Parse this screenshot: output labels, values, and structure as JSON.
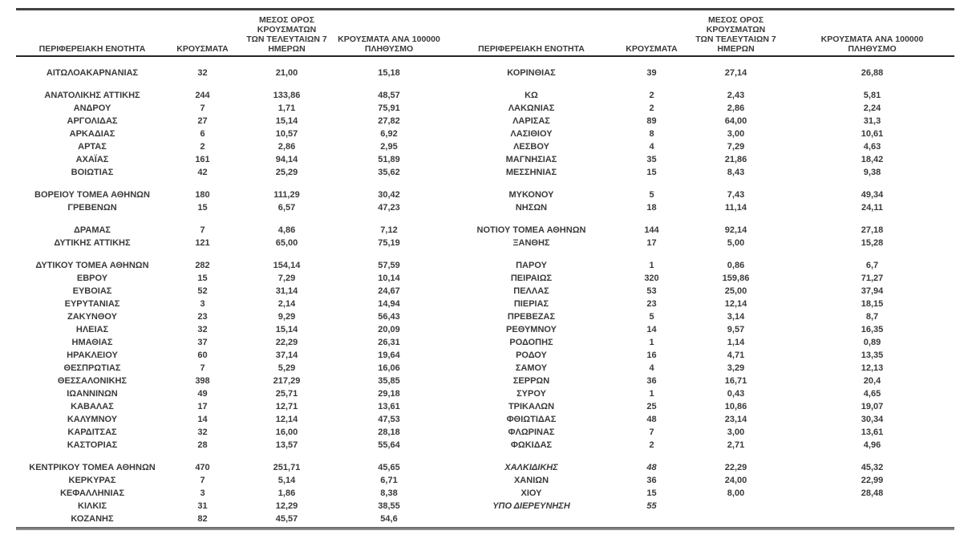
{
  "table": {
    "headers": {
      "region": "ΠΕΡΙΦΕΡΕΙΑΚΗ ΕΝΟΤΗΤΑ",
      "cases": "ΚΡΟΥΣΜΑΤΑ",
      "avg7": "ΜΕΣΟΣ ΟΡΟΣ ΚΡΟΥΣΜΑΤΩΝ\nΤΩΝ ΤΕΛΕΥΤΑΙΩΝ 7\nΗΜΕΡΩΝ",
      "per100k": "ΚΡΟΥΣΜΑΤΑ ΑΝΑ 100000\nΠΛΗΘΥΣΜΟ"
    },
    "rows": [
      {
        "l": [
          "ΑΙΤΩΛΟΑΚΑΡΝΑΝΙΑΣ",
          "32",
          "21,00",
          "15,18"
        ],
        "r": [
          "ΚΟΡΙΝΘΙΑΣ",
          "39",
          "27,14",
          "26,88"
        ]
      },
      {
        "spacer": true
      },
      {
        "l": [
          "ΑΝΑΤΟΛΙΚΗΣ ΑΤΤΙΚΗΣ",
          "244",
          "133,86",
          "48,57"
        ],
        "r": [
          "ΚΩ",
          "2",
          "2,43",
          "5,81"
        ]
      },
      {
        "l": [
          "ΑΝΔΡΟΥ",
          "7",
          "1,71",
          "75,91"
        ],
        "r": [
          "ΛΑΚΩΝΙΑΣ",
          "2",
          "2,86",
          "2,24"
        ]
      },
      {
        "l": [
          "ΑΡΓΟΛΙΔΑΣ",
          "27",
          "15,14",
          "27,82"
        ],
        "r": [
          "ΛΑΡΙΣΑΣ",
          "89",
          "64,00",
          "31,3"
        ]
      },
      {
        "l": [
          "ΑΡΚΑΔΙΑΣ",
          "6",
          "10,57",
          "6,92"
        ],
        "r": [
          "ΛΑΣΙΘΙΟΥ",
          "8",
          "3,00",
          "10,61"
        ]
      },
      {
        "l": [
          "ΑΡΤΑΣ",
          "2",
          "2,86",
          "2,95"
        ],
        "r": [
          "ΛΕΣΒΟΥ",
          "4",
          "7,29",
          "4,63"
        ]
      },
      {
        "l": [
          "ΑΧΑΪΑΣ",
          "161",
          "94,14",
          "51,89"
        ],
        "r": [
          "ΜΑΓΝΗΣΙΑΣ",
          "35",
          "21,86",
          "18,42"
        ]
      },
      {
        "l": [
          "ΒΟΙΩΤΙΑΣ",
          "42",
          "25,29",
          "35,62"
        ],
        "r": [
          "ΜΕΣΣΗΝΙΑΣ",
          "15",
          "8,43",
          "9,38"
        ]
      },
      {
        "spacer": true
      },
      {
        "l": [
          "ΒΟΡΕΙΟΥ ΤΟΜΕΑ ΑΘΗΝΩΝ",
          "180",
          "111,29",
          "30,42"
        ],
        "r": [
          "ΜΥΚΟΝΟΥ",
          "5",
          "7,43",
          "49,34"
        ]
      },
      {
        "l": [
          "ΓΡΕΒΕΝΩΝ",
          "15",
          "6,57",
          "47,23"
        ],
        "r": [
          "ΝΗΣΩΝ",
          "18",
          "11,14",
          "24,11"
        ]
      },
      {
        "spacer": true
      },
      {
        "l": [
          "ΔΡΑΜΑΣ",
          "7",
          "4,86",
          "7,12"
        ],
        "r": [
          "ΝΟΤΙΟΥ ΤΟΜΕΑ ΑΘΗΝΩΝ",
          "144",
          "92,14",
          "27,18"
        ]
      },
      {
        "l": [
          "ΔΥΤΙΚΗΣ ΑΤΤΙΚΗΣ",
          "121",
          "65,00",
          "75,19"
        ],
        "r": [
          "ΞΑΝΘΗΣ",
          "17",
          "5,00",
          "15,28"
        ]
      },
      {
        "spacer": true
      },
      {
        "l": [
          "ΔΥΤΙΚΟΥ ΤΟΜΕΑ ΑΘΗΝΩΝ",
          "282",
          "154,14",
          "57,59"
        ],
        "r": [
          "ΠΑΡΟΥ",
          "1",
          "0,86",
          "6,7"
        ]
      },
      {
        "l": [
          "ΕΒΡΟΥ",
          "15",
          "7,29",
          "10,14"
        ],
        "r": [
          "ΠΕΙΡΑΙΩΣ",
          "320",
          "159,86",
          "71,27"
        ]
      },
      {
        "l": [
          "ΕΥΒΟΙΑΣ",
          "52",
          "31,14",
          "24,67"
        ],
        "r": [
          "ΠΕΛΛΑΣ",
          "53",
          "25,00",
          "37,94"
        ]
      },
      {
        "l": [
          "ΕΥΡΥΤΑΝΙΑΣ",
          "3",
          "2,14",
          "14,94"
        ],
        "r": [
          "ΠΙΕΡΙΑΣ",
          "23",
          "12,14",
          "18,15"
        ]
      },
      {
        "l": [
          "ΖΑΚΥΝΘΟΥ",
          "23",
          "9,29",
          "56,43"
        ],
        "r": [
          "ΠΡΕΒΕΖΑΣ",
          "5",
          "3,14",
          "8,7"
        ]
      },
      {
        "l": [
          "ΗΛΕΙΑΣ",
          "32",
          "15,14",
          "20,09"
        ],
        "r": [
          "ΡΕΘΥΜΝΟΥ",
          "14",
          "9,57",
          "16,35"
        ]
      },
      {
        "l": [
          "ΗΜΑΘΙΑΣ",
          "37",
          "22,29",
          "26,31"
        ],
        "r": [
          "ΡΟΔΟΠΗΣ",
          "1",
          "1,14",
          "0,89"
        ]
      },
      {
        "l": [
          "ΗΡΑΚΛΕΙΟΥ",
          "60",
          "37,14",
          "19,64"
        ],
        "r": [
          "ΡΟΔΟΥ",
          "16",
          "4,71",
          "13,35"
        ]
      },
      {
        "l": [
          "ΘΕΣΠΡΩΤΙΑΣ",
          "7",
          "5,29",
          "16,06"
        ],
        "r": [
          "ΣΑΜΟΥ",
          "4",
          "3,29",
          "12,13"
        ]
      },
      {
        "l": [
          "ΘΕΣΣΑΛΟΝΙΚΗΣ",
          "398",
          "217,29",
          "35,85"
        ],
        "r": [
          "ΣΕΡΡΩΝ",
          "36",
          "16,71",
          "20,4"
        ]
      },
      {
        "l": [
          "ΙΩΑΝΝΙΝΩΝ",
          "49",
          "25,71",
          "29,18"
        ],
        "r": [
          "ΣΥΡΟΥ",
          "1",
          "0,43",
          "4,65"
        ]
      },
      {
        "l": [
          "ΚΑΒΑΛΑΣ",
          "17",
          "12,71",
          "13,61"
        ],
        "r": [
          "ΤΡΙΚΑΛΩΝ",
          "25",
          "10,86",
          "19,07"
        ]
      },
      {
        "l": [
          "ΚΑΛΥΜΝΟΥ",
          "14",
          "12,14",
          "47,53"
        ],
        "r": [
          "ΦΘΙΩΤΙΔΑΣ",
          "48",
          "23,14",
          "30,34"
        ]
      },
      {
        "l": [
          "ΚΑΡΔΙΤΣΑΣ",
          "32",
          "16,00",
          "28,18"
        ],
        "r": [
          "ΦΛΩΡΙΝΑΣ",
          "7",
          "3,00",
          "13,61"
        ]
      },
      {
        "l": [
          "ΚΑΣΤΟΡΙΑΣ",
          "28",
          "13,57",
          "55,64"
        ],
        "r": [
          "ΦΩΚΙΔΑΣ",
          "2",
          "2,71",
          "4,96"
        ]
      },
      {
        "spacer": true
      },
      {
        "l": [
          "ΚΕΝΤΡΙΚΟΥ ΤΟΜΕΑ ΑΘΗΝΩΝ",
          "470",
          "251,71",
          "45,65"
        ],
        "r": [
          "ΧΑΛΚΙΔΙΚΗΣ",
          "48",
          "22,29",
          "45,32"
        ],
        "ri": true
      },
      {
        "l": [
          "ΚΕΡΚΥΡΑΣ",
          "7",
          "5,14",
          "6,71"
        ],
        "r": [
          "ΧΑΝΙΩΝ",
          "36",
          "24,00",
          "22,99"
        ]
      },
      {
        "l": [
          "ΚΕΦΑΛΛΗΝΙΑΣ",
          "3",
          "1,86",
          "8,38"
        ],
        "r": [
          "ΧΙΟΥ",
          "15",
          "8,00",
          "28,48"
        ]
      },
      {
        "l": [
          "ΚΙΛΚΙΣ",
          "31",
          "12,29",
          "38,55"
        ],
        "r": [
          "ΥΠΟ ΔΙΕΡΕΥΝΗΣΗ",
          "55",
          "",
          ""
        ],
        "ri": true
      },
      {
        "l": [
          "ΚΟΖΑΝΗΣ",
          "82",
          "45,57",
          "54,6"
        ],
        "r": [
          "",
          "",
          "",
          ""
        ]
      }
    ]
  }
}
